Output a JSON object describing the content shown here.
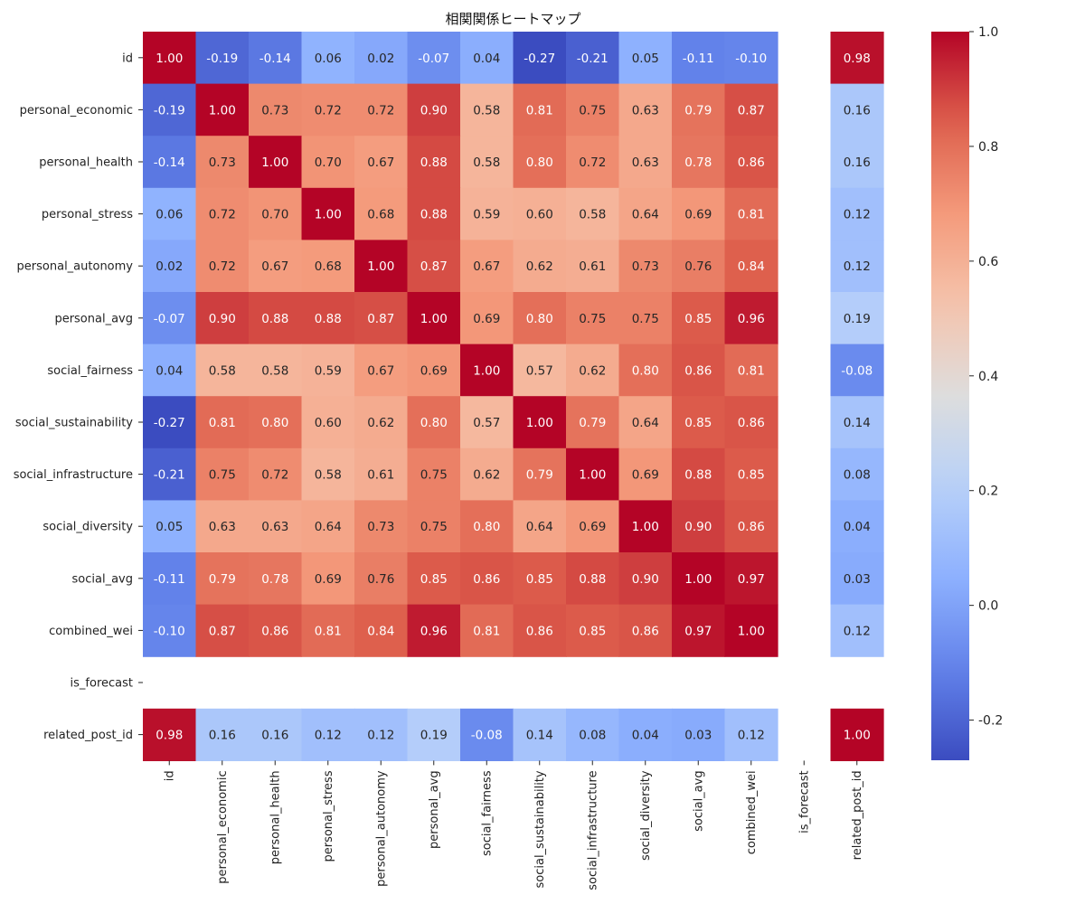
{
  "chart_data": {
    "type": "heatmap",
    "title": "相関関係ヒートマップ",
    "variables": [
      "id",
      "personal_economic",
      "personal_health",
      "personal_stress",
      "personal_autonomy",
      "personal_avg",
      "social_fairness",
      "social_sustainability",
      "social_infrastructure",
      "social_diversity",
      "social_avg",
      "combined_wei",
      "is_forecast",
      "related_post_id"
    ],
    "matrix": [
      [
        1.0,
        -0.19,
        -0.14,
        0.06,
        0.02,
        -0.07,
        0.04,
        -0.27,
        -0.21,
        0.05,
        -0.11,
        -0.1,
        null,
        0.98
      ],
      [
        -0.19,
        1.0,
        0.73,
        0.72,
        0.72,
        0.9,
        0.58,
        0.81,
        0.75,
        0.63,
        0.79,
        0.87,
        null,
        0.16
      ],
      [
        -0.14,
        0.73,
        1.0,
        0.7,
        0.67,
        0.88,
        0.58,
        0.8,
        0.72,
        0.63,
        0.78,
        0.86,
        null,
        0.16
      ],
      [
        0.06,
        0.72,
        0.7,
        1.0,
        0.68,
        0.88,
        0.59,
        0.6,
        0.58,
        0.64,
        0.69,
        0.81,
        null,
        0.12
      ],
      [
        0.02,
        0.72,
        0.67,
        0.68,
        1.0,
        0.87,
        0.67,
        0.62,
        0.61,
        0.73,
        0.76,
        0.84,
        null,
        0.12
      ],
      [
        -0.07,
        0.9,
        0.88,
        0.88,
        0.87,
        1.0,
        0.69,
        0.8,
        0.75,
        0.75,
        0.85,
        0.96,
        null,
        0.19
      ],
      [
        0.04,
        0.58,
        0.58,
        0.59,
        0.67,
        0.69,
        1.0,
        0.57,
        0.62,
        0.8,
        0.86,
        0.81,
        null,
        -0.08
      ],
      [
        -0.27,
        0.81,
        0.8,
        0.6,
        0.62,
        0.8,
        0.57,
        1.0,
        0.79,
        0.64,
        0.85,
        0.86,
        null,
        0.14
      ],
      [
        -0.21,
        0.75,
        0.72,
        0.58,
        0.61,
        0.75,
        0.62,
        0.79,
        1.0,
        0.69,
        0.88,
        0.85,
        null,
        0.08
      ],
      [
        0.05,
        0.63,
        0.63,
        0.64,
        0.73,
        0.75,
        0.8,
        0.64,
        0.69,
        1.0,
        0.9,
        0.86,
        null,
        0.04
      ],
      [
        -0.11,
        0.79,
        0.78,
        0.69,
        0.76,
        0.85,
        0.86,
        0.85,
        0.88,
        0.9,
        1.0,
        0.97,
        null,
        0.03
      ],
      [
        -0.1,
        0.87,
        0.86,
        0.81,
        0.84,
        0.96,
        0.81,
        0.86,
        0.85,
        0.86,
        0.97,
        1.0,
        null,
        0.12
      ],
      [
        null,
        null,
        null,
        null,
        null,
        null,
        null,
        null,
        null,
        null,
        null,
        null,
        null,
        null
      ],
      [
        0.98,
        0.16,
        0.16,
        0.12,
        0.12,
        0.19,
        -0.08,
        0.14,
        0.08,
        0.04,
        0.03,
        0.12,
        null,
        1.0
      ]
    ],
    "value_format": "0.00",
    "colormap": "coolwarm",
    "colormap_stops": [
      "#3b4cc0",
      "#dddddd",
      "#b40426"
    ],
    "vmin": -0.27,
    "vmax": 1.0,
    "colorbar_ticks": [
      1.0,
      0.8,
      0.6,
      0.4,
      0.2,
      0.0,
      -0.2
    ],
    "colorbar_tick_labels": [
      "1.0",
      "0.8",
      "0.6",
      "0.4",
      "0.2",
      "0.0",
      "-0.2"
    ],
    "legend": "colorbar-right"
  }
}
